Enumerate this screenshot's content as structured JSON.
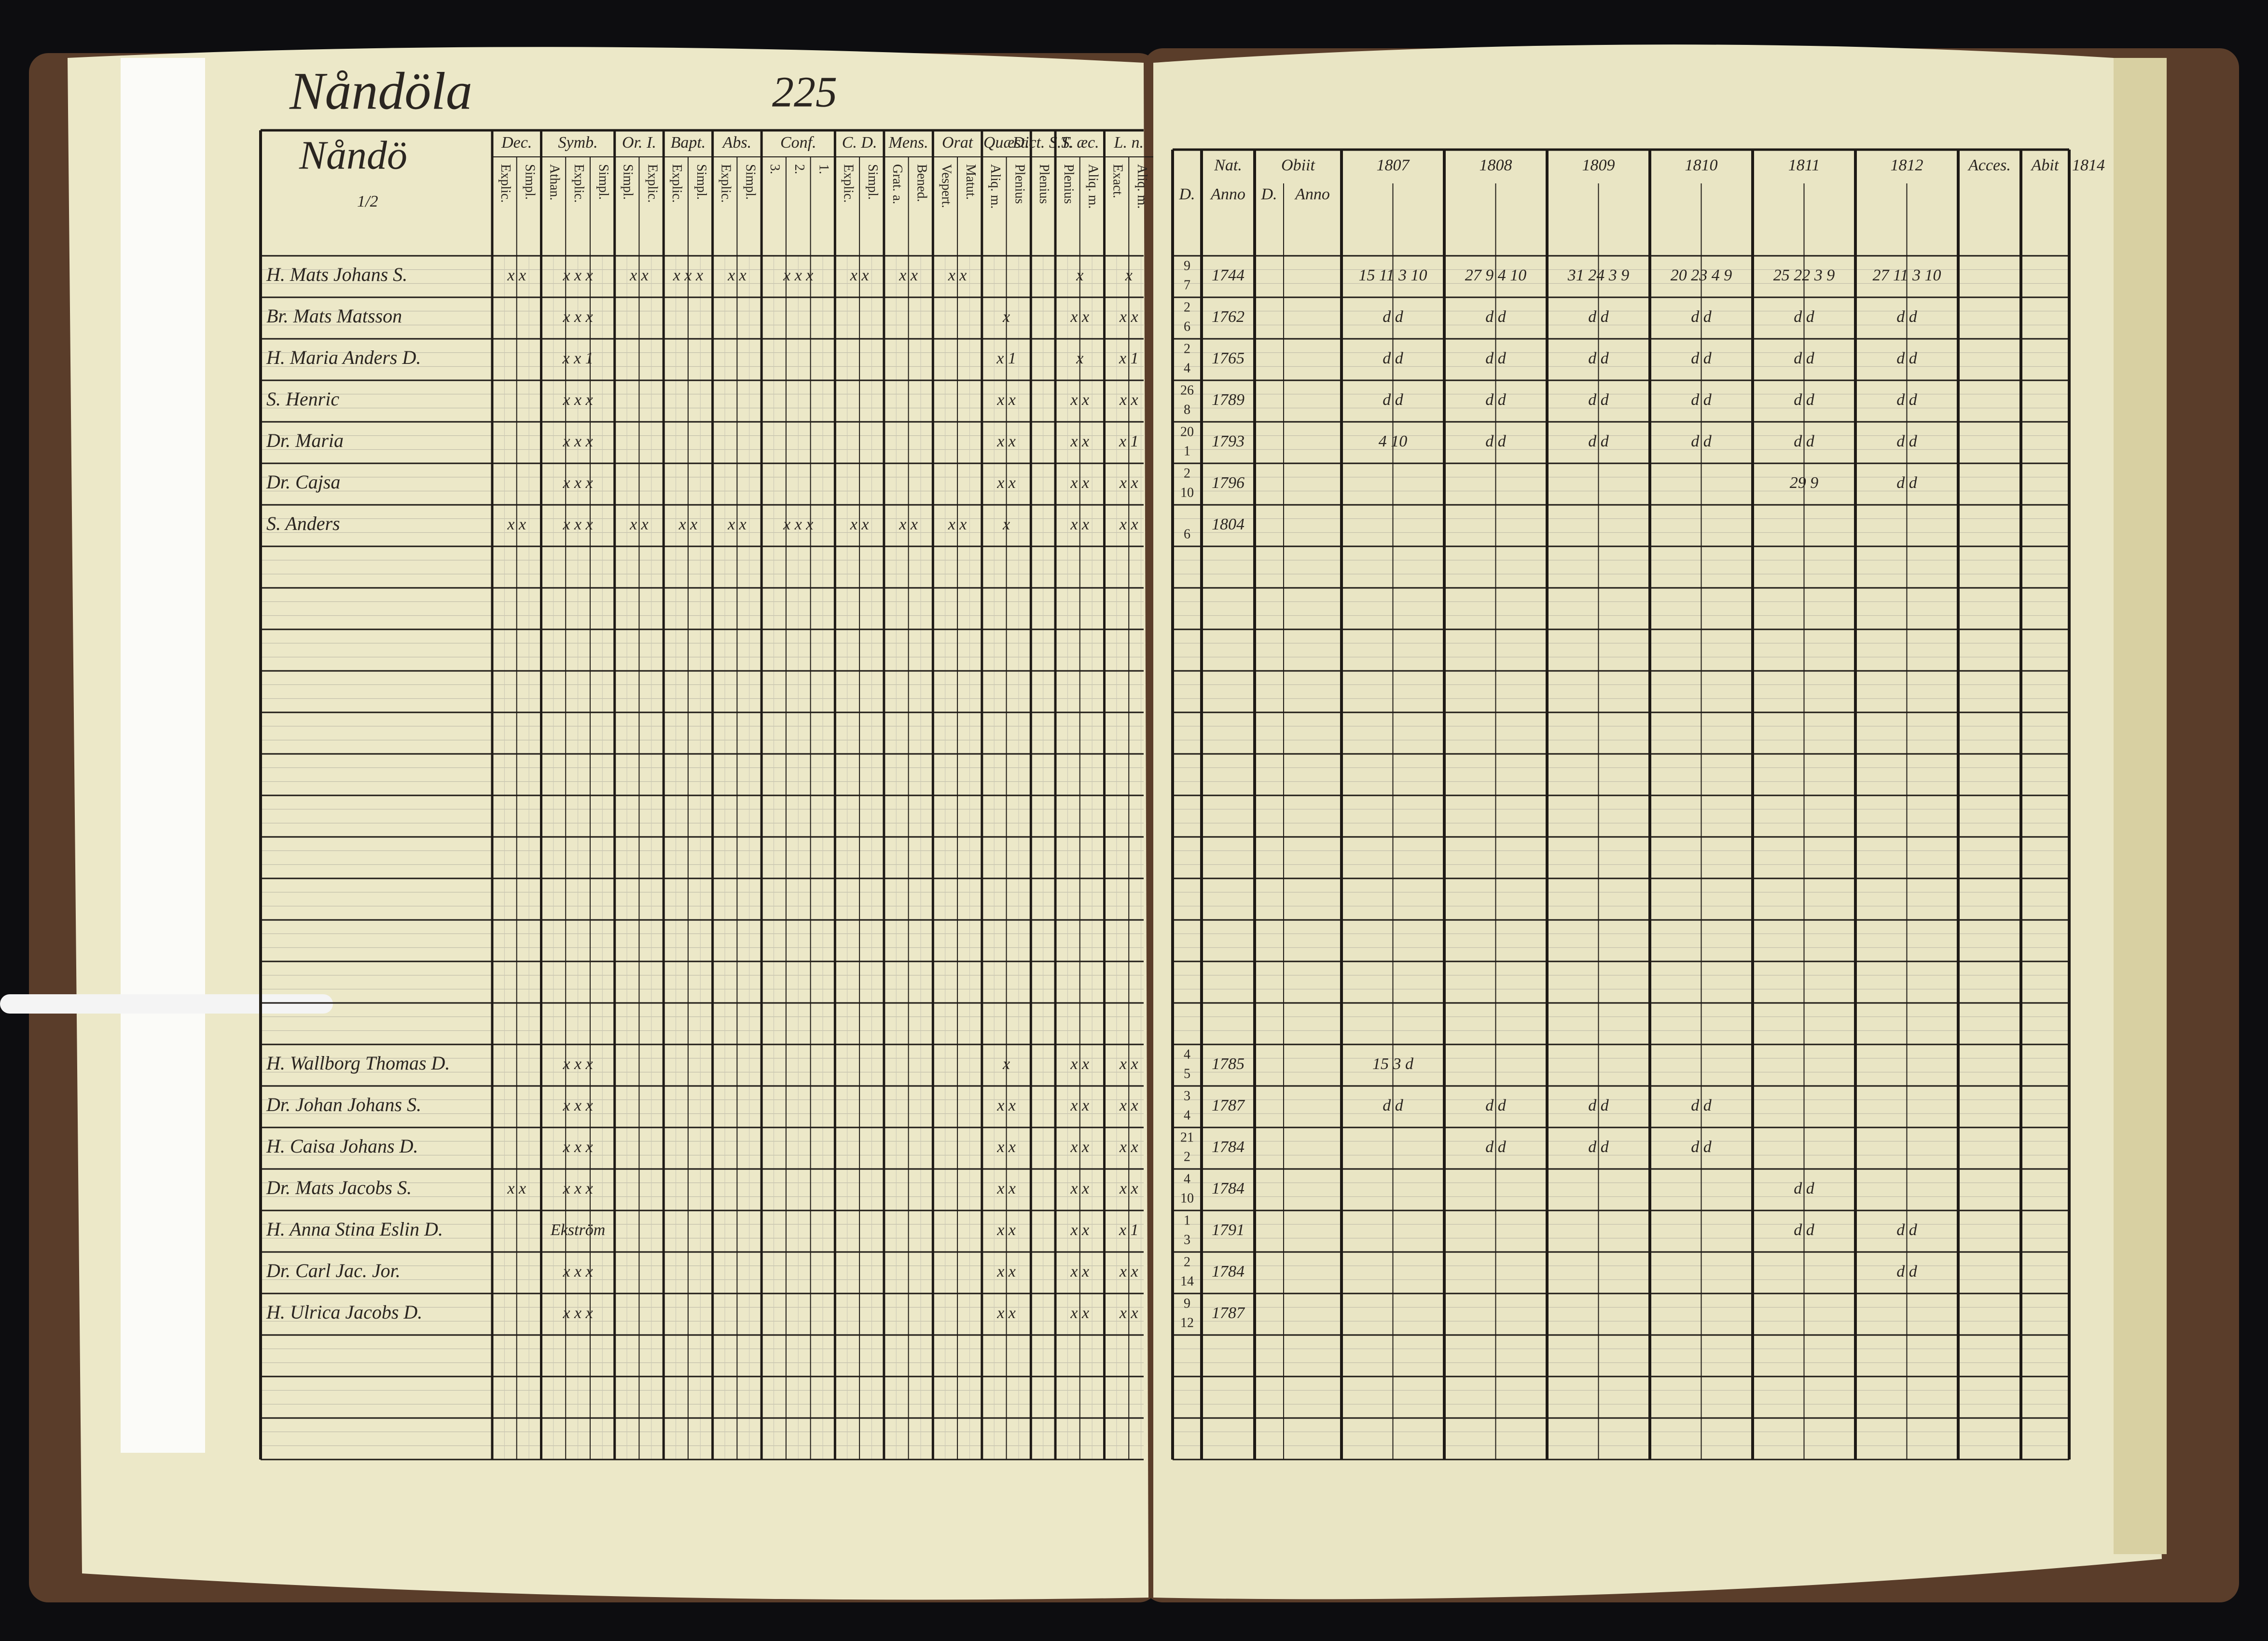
{
  "header": {
    "place": "Nåndöla",
    "page": "225",
    "village": "Nåndö",
    "fraction": "1/2"
  },
  "left_groups": [
    {
      "title": "Dec.",
      "sub": [
        "Explic.",
        "Simpl."
      ]
    },
    {
      "title": "Symb.",
      "sub": [
        "Athan.",
        "Explic.",
        "Simpl."
      ]
    },
    {
      "title": "Or. I.",
      "sub": [
        "Simpl.",
        "Explic."
      ]
    },
    {
      "title": "Bapt.",
      "sub": [
        "Explic.",
        "Simpl."
      ]
    },
    {
      "title": "Abs.",
      "sub": [
        "Explic.",
        "Simpl."
      ]
    },
    {
      "title": "Conf.",
      "sub": [
        "3.",
        "2.",
        "1."
      ]
    },
    {
      "title": "C. D.",
      "sub": [
        "Explic.",
        "Simpl."
      ]
    },
    {
      "title": "Mens.",
      "sub": [
        "Grat. a.",
        "Bened."
      ]
    },
    {
      "title": "Orat",
      "sub": [
        "Vespert.",
        "Matut."
      ]
    },
    {
      "title": "Quæst.",
      "sub": [
        "Aliq. m.",
        "Plenius"
      ]
    },
    {
      "title": "Dict. S.S.",
      "sub": [
        "Plenius"
      ]
    },
    {
      "title": "T. æc.",
      "sub": [
        "Plenius",
        "Aliq. m."
      ]
    },
    {
      "title": "L. n.",
      "sub": [
        "Exact.",
        "Aliq. m."
      ]
    }
  ],
  "right_headers": {
    "nat": "Nat.",
    "nat_day": "D.",
    "nat_anno": "Anno",
    "obiit": "Obiit",
    "obiit_day": "D.",
    "obiit_anno": "Anno",
    "years": [
      "1807",
      "1808",
      "1809",
      "1810",
      "1811",
      "1812"
    ],
    "acces": "Acces.",
    "abit": "Abit",
    "extra_year": "1814"
  },
  "rows": [
    {
      "name": "H. Mats Johans S.",
      "birth_day": "9",
      "birth_month": "7",
      "birth_year": "1744",
      "catechism": [
        "x x",
        "x x x",
        "x x",
        "x x x",
        "x x",
        "x x x",
        "x x",
        "x x",
        "x x",
        null,
        null,
        "x",
        "x"
      ],
      "years": [
        "15 11 3 10",
        "27 9 4 10",
        "31 24 3 9",
        "20 23 4 9",
        "25 22 3 9",
        "27 11 3 10"
      ]
    },
    {
      "name": "Br. Mats Matsson",
      "birth_day": "2",
      "birth_month": "6",
      "birth_year": "1762",
      "catechism": [
        null,
        "x x x",
        null,
        null,
        null,
        null,
        null,
        null,
        null,
        "x",
        null,
        "x x",
        "x x"
      ],
      "years": [
        "d d",
        "d d",
        "d d",
        "d d",
        "d d",
        "d d"
      ]
    },
    {
      "name": "H. Maria Anders D.",
      "birth_day": "2",
      "birth_month": "4",
      "birth_year": "1765",
      "catechism": [
        null,
        "x x 1",
        null,
        null,
        null,
        null,
        null,
        null,
        null,
        "x 1",
        null,
        "x",
        "x 1"
      ],
      "years": [
        "d d",
        "d d",
        "d d",
        "d d",
        "d d",
        "d d"
      ]
    },
    {
      "name": "S. Henric",
      "birth_day": "26",
      "birth_month": "8",
      "birth_year": "1789",
      "catechism": [
        null,
        "x x x",
        null,
        null,
        null,
        null,
        null,
        null,
        null,
        "x x",
        null,
        "x x",
        "x x"
      ],
      "years": [
        "d d",
        "d d",
        "d d",
        "d d",
        "d d",
        "d d"
      ]
    },
    {
      "name": "Dr. Maria",
      "birth_day": "20",
      "birth_month": "1",
      "birth_year": "1793",
      "catechism": [
        null,
        "x x x",
        null,
        null,
        null,
        null,
        null,
        null,
        null,
        "x x",
        null,
        "x x",
        "x 1"
      ],
      "years": [
        "4 10",
        "d d",
        "d d",
        "d d",
        "d d",
        "d d"
      ]
    },
    {
      "name": "Dr. Cajsa",
      "birth_day": "2",
      "birth_month": "10",
      "birth_year": "1796",
      "catechism": [
        null,
        "x x x",
        null,
        null,
        null,
        null,
        null,
        null,
        null,
        "x x",
        null,
        "x x",
        "x x"
      ],
      "years": [
        null,
        null,
        null,
        null,
        "29 9",
        "d d"
      ]
    },
    {
      "name": "S. Anders",
      "birth_day": null,
      "birth_month": "6",
      "birth_year": "1804",
      "catechism": [
        "x x",
        "x x x",
        "x x",
        "x x",
        "x x",
        "x x x",
        "x x",
        "x x",
        "x x",
        "x",
        null,
        "x x",
        "x x"
      ],
      "years": [
        null,
        null,
        null,
        null,
        null,
        null
      ]
    },
    {
      "name": "H. Wallborg Thomas D.",
      "birth_day": "4",
      "birth_month": "5",
      "birth_year": "1785",
      "catechism": [
        null,
        "x x x",
        null,
        null,
        null,
        null,
        null,
        null,
        null,
        "x",
        null,
        "x x",
        "x x"
      ],
      "years": [
        "15 3 d",
        null,
        null,
        null,
        null,
        null
      ]
    },
    {
      "name": "Dr. Johan Johans S.",
      "birth_day": "3",
      "birth_month": "4",
      "birth_year": "1787",
      "catechism": [
        null,
        "x x x",
        null,
        null,
        null,
        null,
        null,
        null,
        null,
        "x x",
        null,
        "x x",
        "x x"
      ],
      "years": [
        "d d",
        "d d",
        "d d",
        "d d",
        null,
        null
      ]
    },
    {
      "name": "H. Caisa Johans D.",
      "birth_day": "21",
      "birth_month": "2",
      "birth_year": "1784",
      "catechism": [
        null,
        "x x x",
        null,
        null,
        null,
        null,
        null,
        null,
        null,
        "x x",
        null,
        "x x",
        "x x"
      ],
      "years": [
        null,
        "d d",
        "d d",
        "d d",
        null,
        null
      ]
    },
    {
      "name": "Dr. Mats Jacobs S.",
      "birth_day": "4",
      "birth_month": "10",
      "birth_year": "1784",
      "catechism": [
        "x x",
        "x x x",
        null,
        null,
        null,
        null,
        null,
        null,
        null,
        "x x",
        null,
        "x x",
        "x x"
      ],
      "years": [
        null,
        null,
        null,
        null,
        "d d",
        null
      ]
    },
    {
      "name": "H. Anna Stina Eslin D.",
      "birth_day": "1",
      "birth_month": "3",
      "birth_year": "1791",
      "catechism": [
        null,
        "Ekström",
        null,
        null,
        null,
        null,
        null,
        null,
        null,
        "x x",
        null,
        "x x",
        "x 1"
      ],
      "years": [
        null,
        null,
        null,
        null,
        "d d",
        "d d"
      ]
    },
    {
      "name": "Dr. Carl Jac. Jor.",
      "birth_day": "2",
      "birth_month": "14",
      "birth_year": "1784",
      "catechism": [
        null,
        "x x x",
        null,
        null,
        null,
        null,
        null,
        null,
        null,
        "x x",
        null,
        "x x",
        "x x"
      ],
      "years": [
        null,
        null,
        null,
        null,
        null,
        "d d"
      ]
    },
    {
      "name": "H. Ulrica Jacobs D.",
      "birth_day": "9",
      "birth_month": "12",
      "birth_year": "1787",
      "catechism": [
        null,
        "x x x",
        null,
        null,
        null,
        null,
        null,
        null,
        null,
        "x x",
        null,
        "x x",
        "x x"
      ],
      "years": [
        null,
        null,
        null,
        null,
        null,
        null
      ]
    }
  ]
}
